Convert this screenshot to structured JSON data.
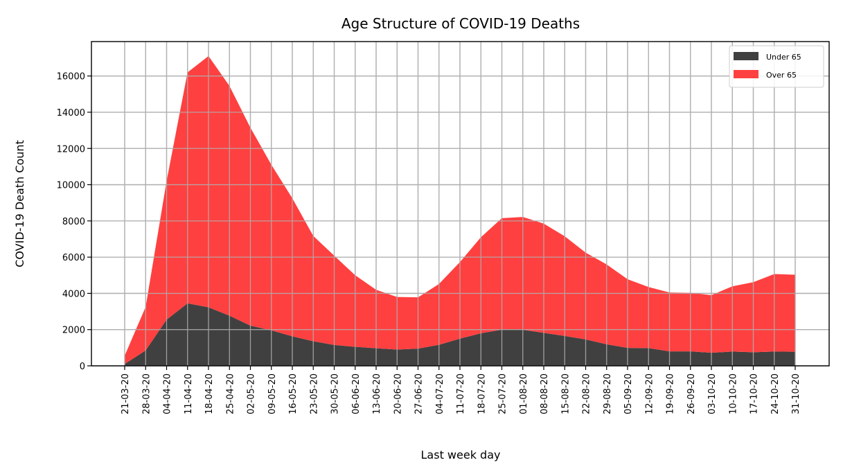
{
  "chart_data": {
    "type": "area",
    "stacked": true,
    "title": "Age Structure of COVID-19 Deaths",
    "xlabel": "Last week day",
    "ylabel": "COVID-19 Death Count",
    "categories": [
      "21-03-20",
      "28-03-20",
      "04-04-20",
      "11-04-20",
      "18-04-20",
      "25-04-20",
      "02-05-20",
      "09-05-20",
      "16-05-20",
      "23-05-20",
      "30-05-20",
      "06-06-20",
      "13-06-20",
      "20-06-20",
      "27-06-20",
      "04-07-20",
      "11-07-20",
      "18-07-20",
      "25-07-20",
      "01-08-20",
      "08-08-20",
      "15-08-20",
      "22-08-20",
      "29-08-20",
      "05-09-20",
      "12-09-20",
      "19-09-20",
      "26-09-20",
      "03-10-20",
      "10-10-20",
      "17-10-20",
      "24-10-20",
      "31-10-20"
    ],
    "series": [
      {
        "name": "Under 65",
        "color": "#404040",
        "values": [
          100,
          850,
          2550,
          3450,
          3230,
          2770,
          2220,
          1960,
          1630,
          1360,
          1150,
          1050,
          970,
          900,
          950,
          1160,
          1500,
          1800,
          2000,
          1990,
          1820,
          1650,
          1460,
          1190,
          990,
          980,
          800,
          800,
          720,
          790,
          750,
          790,
          780
        ]
      },
      {
        "name": "Over 65",
        "color": "#ff4040",
        "values": [
          460,
          2400,
          7650,
          12750,
          13870,
          12680,
          10930,
          9140,
          7620,
          5810,
          4930,
          3950,
          3230,
          2900,
          2830,
          3360,
          4230,
          5300,
          6150,
          6230,
          6030,
          5500,
          4790,
          4410,
          3790,
          3370,
          3250,
          3230,
          3180,
          3600,
          3870,
          4280,
          4250
        ]
      }
    ],
    "ylim": [
      0,
      17900
    ],
    "yticks": [
      0,
      2000,
      4000,
      6000,
      8000,
      10000,
      12000,
      14000,
      16000
    ],
    "grid": true,
    "legend_position": "top-right"
  }
}
